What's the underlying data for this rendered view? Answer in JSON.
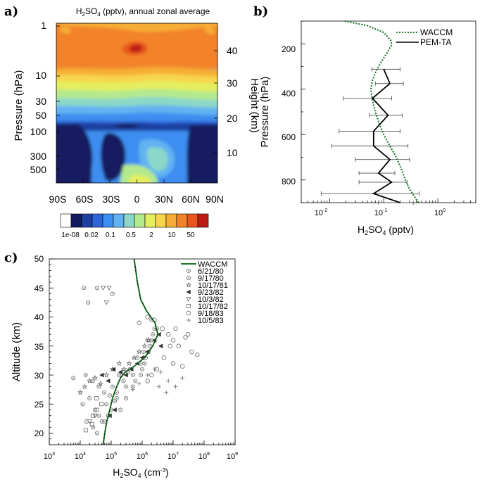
{
  "colors": {
    "contour_levels": [
      "#ffffff",
      "#131b5e",
      "#1e3fa0",
      "#2f64d6",
      "#3d8ef0",
      "#62b2f2",
      "#8bd8c8",
      "#b4e98e",
      "#e4ee5f",
      "#f7d64e",
      "#f6ad36",
      "#f2832a",
      "#e8561f",
      "#bc1c13"
    ],
    "waccm_line": "#1f7a2a",
    "pem_line": "#000000"
  },
  "panel_a": {
    "panel_label": "a)",
    "title_prefix": "H",
    "title_sub": "2",
    "title_mid": "SO",
    "title_sub2": "4",
    "title_suffix": " (pptv), annual zonal average",
    "y_label": "Pressure (hPa)",
    "y2_label": "Height (km)",
    "pressure_ticks": [
      "1",
      "10",
      "30",
      "50",
      "100",
      "300",
      "500"
    ],
    "height_ticks": [
      "40",
      "30",
      "20",
      "10"
    ],
    "lat_ticks": [
      "90S",
      "60S",
      "30S",
      "0",
      "30N",
      "60N",
      "90N"
    ],
    "colorbar_labels": [
      "1e-08",
      "0.02",
      "0.1",
      "0.5",
      "2",
      "10",
      "50"
    ]
  },
  "panel_b": {
    "panel_label": "b)",
    "y_label": "Pressure (hPa)",
    "y_ticks": [
      "200",
      "400",
      "600",
      "800"
    ],
    "x_ticks": [
      {
        "base": "10",
        "exp": "-2"
      },
      {
        "base": "10",
        "exp": "-1"
      },
      {
        "base": "10",
        "exp": "0"
      }
    ],
    "x_label_parts": [
      "H",
      "2",
      "SO",
      "4",
      " (pptv)"
    ],
    "legend": [
      "WACCM",
      "PEM-TA"
    ]
  },
  "panel_c": {
    "panel_label": "c)",
    "y_label": "Altitude (km)",
    "y_ticks": [
      "20",
      "25",
      "30",
      "35",
      "40",
      "45",
      "50"
    ],
    "x_ticks": [
      {
        "base": "10",
        "exp": "3"
      },
      {
        "base": "10",
        "exp": "4"
      },
      {
        "base": "10",
        "exp": "5"
      },
      {
        "base": "10",
        "exp": "6"
      },
      {
        "base": "10",
        "exp": "7"
      },
      {
        "base": "10",
        "exp": "8"
      },
      {
        "base": "10",
        "exp": "9"
      }
    ],
    "x_label_parts": [
      "H",
      "2",
      "SO",
      "4",
      " (cm",
      "-3",
      ")"
    ],
    "legend": [
      "WACCM",
      "6/21/80",
      "9/17/80",
      "10/17/81",
      "9/23/82",
      "10/3/82",
      "10/17/82",
      "9/18/83",
      "10/5/83"
    ]
  },
  "chart_data": [
    {
      "type": "heatmap",
      "panel": "a",
      "title": "H2SO4 (pptv), annual zonal average",
      "xlabel": "",
      "ylabel": "Pressure (hPa)",
      "y2label": "Height (km)",
      "x_categories": [
        "90S",
        "60S",
        "30S",
        "0",
        "30N",
        "60N",
        "90N"
      ],
      "y_pressure_range": [
        800,
        1
      ],
      "colorbar_levels": [
        "1e-08",
        "0.02",
        "0.1",
        "0.5",
        "2",
        "10",
        "50"
      ],
      "description_levels_by_pressure": [
        {
          "pressure": 1,
          "level": "10-50"
        },
        {
          "pressure": 10,
          "level": "2-10"
        },
        {
          "pressure": 30,
          "level": "0.5-2"
        },
        {
          "pressure": 50,
          "level": "0.1-0.5"
        },
        {
          "pressure": 100,
          "level": "1e-08-0.02"
        },
        {
          "pressure": 500,
          "level": "0.02-0.1"
        }
      ]
    },
    {
      "type": "line",
      "panel": "b",
      "xlabel": "H2SO4 (pptv)",
      "ylabel": "Pressure (hPa)",
      "xscale": "log",
      "xlim": [
        0.003,
        5
      ],
      "ylim": [
        900,
        100
      ],
      "legend_position": "top-right",
      "series": [
        {
          "name": "WACCM",
          "style": "dotted",
          "points": [
            [
              0.019,
              100
            ],
            [
              0.05,
              120
            ],
            [
              0.1,
              150
            ],
            [
              0.135,
              185
            ],
            [
              0.14,
              205
            ],
            [
              0.115,
              240
            ],
            [
              0.09,
              280
            ],
            [
              0.072,
              320
            ],
            [
              0.062,
              360
            ],
            [
              0.058,
              400
            ],
            [
              0.062,
              450
            ],
            [
              0.07,
              500
            ],
            [
              0.082,
              550
            ],
            [
              0.1,
              600
            ],
            [
              0.13,
              650
            ],
            [
              0.17,
              700
            ],
            [
              0.21,
              750
            ],
            [
              0.25,
              800
            ],
            [
              0.3,
              840
            ],
            [
              0.36,
              870
            ],
            [
              0.44,
              900
            ]
          ]
        },
        {
          "name": "PEM-TA",
          "style": "solid",
          "points": [
            [
              0.1,
              312
            ],
            [
              0.13,
              375
            ],
            [
              0.062,
              440
            ],
            [
              0.12,
              515
            ],
            [
              0.065,
              585
            ],
            [
              0.065,
              650
            ],
            [
              0.13,
              710
            ],
            [
              0.08,
              770
            ],
            [
              0.14,
              810
            ],
            [
              0.065,
              860
            ],
            [
              0.2,
              900
            ]
          ],
          "x_error": [
            [
              0.06,
              0.2
            ],
            [
              0.07,
              0.23
            ],
            [
              0.018,
              0.14
            ],
            [
              0.055,
              0.22
            ],
            [
              0.015,
              0.2
            ],
            [
              0.011,
              0.28
            ],
            [
              0.03,
              0.3
            ],
            [
              0.035,
              0.16
            ],
            [
              0.035,
              0.27
            ],
            [
              0.007,
              0.45
            ],
            [
              0.08,
              0.35
            ]
          ]
        }
      ]
    },
    {
      "type": "scatter",
      "panel": "c",
      "xlabel": "H2SO4 (cm-3)",
      "ylabel": "Altitude (km)",
      "xscale": "log",
      "xlim": [
        1000,
        1000000000
      ],
      "ylim": [
        18,
        50
      ],
      "legend_position": "top-right",
      "series": [
        {
          "name": "WACCM",
          "type": "line",
          "points": [
            [
              550000,
              50
            ],
            [
              700000,
              46
            ],
            [
              900000,
              43
            ],
            [
              1400000,
              41
            ],
            [
              2600000,
              39
            ],
            [
              3200000,
              37
            ],
            [
              2200000,
              35
            ],
            [
              1200000,
              33
            ],
            [
              550000,
              31.5
            ],
            [
              280000,
              30.5
            ],
            [
              200000,
              29.5
            ],
            [
              150000,
              28
            ],
            [
              110000,
              26
            ],
            [
              90000,
              24
            ],
            [
              72000,
              22
            ],
            [
              62000,
              20
            ],
            [
              55000,
              18
            ]
          ]
        },
        {
          "name": "6/21/80",
          "marker": "circle-dot",
          "points": [
            [
              13000,
              45
            ],
            [
              18000,
              42.5
            ],
            [
              35000,
              45
            ],
            [
              110000,
              44
            ],
            [
              6000,
              29.5
            ],
            [
              15000,
              30
            ],
            [
              25000,
              29
            ],
            [
              40000,
              28
            ],
            [
              60000,
              27
            ],
            [
              90000,
              26.5
            ],
            [
              130000,
              25.5
            ],
            [
              200000,
              24
            ],
            [
              300000,
              26
            ],
            [
              500000,
              28
            ],
            [
              900000,
              30
            ],
            [
              1200000,
              32
            ],
            [
              1600000,
              34
            ],
            [
              2000000,
              36
            ],
            [
              2500000,
              38
            ],
            [
              2000000,
              39.5
            ],
            [
              1000000,
              31
            ],
            [
              600000,
              29
            ],
            [
              350000,
              30.5
            ],
            [
              150000,
              27
            ],
            [
              80000,
              23
            ],
            [
              50000,
              22
            ],
            [
              30000,
              24
            ],
            [
              20000,
              26
            ],
            [
              12000,
              25
            ]
          ]
        },
        {
          "name": "9/17/80",
          "marker": "circle-dot",
          "points": [
            [
              16000,
              22
            ],
            [
              26000,
              21
            ],
            [
              40000,
              23
            ],
            [
              70000,
              25
            ],
            [
              110000,
              28
            ],
            [
              180000,
              30
            ],
            [
              250000,
              29
            ],
            [
              400000,
              31
            ],
            [
              700000,
              33
            ],
            [
              1100000,
              34
            ],
            [
              1500000,
              36
            ],
            [
              2200000,
              37
            ],
            [
              3000000,
              38
            ],
            [
              1800000,
              35
            ],
            [
              1300000,
              33
            ],
            [
              900000,
              32
            ],
            [
              500000,
              30
            ],
            [
              300000,
              28
            ],
            [
              150000,
              26
            ],
            [
              100000,
              24
            ],
            [
              60000,
              22
            ],
            [
              35000,
              20
            ]
          ]
        },
        {
          "name": "10/17/81",
          "marker": "star",
          "points": [
            [
              10000,
              27
            ],
            [
              14000,
              28
            ],
            [
              20000,
              29
            ],
            [
              30000,
              29.5
            ],
            [
              45000,
              28.5
            ],
            [
              70000,
              30
            ],
            [
              110000,
              31
            ],
            [
              180000,
              32
            ],
            [
              260000,
              31
            ],
            [
              380000,
              32
            ],
            [
              550000,
              33
            ],
            [
              800000,
              34
            ],
            [
              1200000,
              35
            ],
            [
              1600000,
              36
            ]
          ]
        },
        {
          "name": "9/23/82",
          "marker": "triangle-left",
          "points": [
            [
              50000,
              30
            ],
            [
              80000,
              29
            ],
            [
              120000,
              31
            ],
            [
              200000,
              30.5
            ],
            [
              300000,
              30
            ],
            [
              450000,
              31
            ],
            [
              700000,
              32
            ],
            [
              1000000,
              33
            ],
            [
              1500000,
              34
            ],
            [
              2500000,
              36
            ],
            [
              3500000,
              37
            ],
            [
              4000000,
              35
            ],
            [
              90000,
              23
            ],
            [
              130000,
              24
            ]
          ]
        },
        {
          "name": "10/3/82",
          "marker": "triangle-down",
          "points": [
            [
              55000,
              45
            ],
            [
              85000,
              45
            ],
            [
              70000,
              42.5
            ],
            [
              20000,
              22
            ],
            [
              30000,
              23
            ]
          ]
        },
        {
          "name": "10/17/82",
          "marker": "square",
          "points": [
            [
              15000,
              20.5
            ],
            [
              24000,
              21.5
            ],
            [
              34000,
              24
            ],
            [
              48000,
              25
            ],
            [
              26000,
              23
            ],
            [
              33000,
              26
            ]
          ]
        },
        {
          "name": "9/18/83",
          "marker": "circle",
          "points": [
            [
              800000,
              39
            ],
            [
              1500000,
              40
            ],
            [
              2500000,
              39.5
            ],
            [
              4500000,
              38
            ],
            [
              7000000,
              37
            ],
            [
              10000000,
              36
            ],
            [
              15000000,
              35
            ],
            [
              25000000,
              36.5
            ],
            [
              40000000,
              34
            ],
            [
              60000000,
              33.5
            ],
            [
              10000000,
              32
            ],
            [
              5000000,
              33
            ],
            [
              3000000,
              31
            ],
            [
              2000000,
              30
            ],
            [
              1500000,
              29
            ],
            [
              20000000,
              31.5
            ],
            [
              8000000,
              35
            ],
            [
              12000000,
              38
            ],
            [
              30000000,
              37
            ]
          ]
        },
        {
          "name": "10/5/83",
          "marker": "plus",
          "points": [
            [
              1500000,
              30
            ],
            [
              2500000,
              31
            ],
            [
              4000000,
              30.5
            ],
            [
              7000000,
              29
            ],
            [
              12000000,
              28
            ],
            [
              20000000,
              29.5
            ],
            [
              3500000,
              28
            ],
            [
              6000000,
              27
            ],
            [
              500000,
              27.5
            ],
            [
              800000,
              28.5
            ]
          ]
        }
      ]
    }
  ]
}
